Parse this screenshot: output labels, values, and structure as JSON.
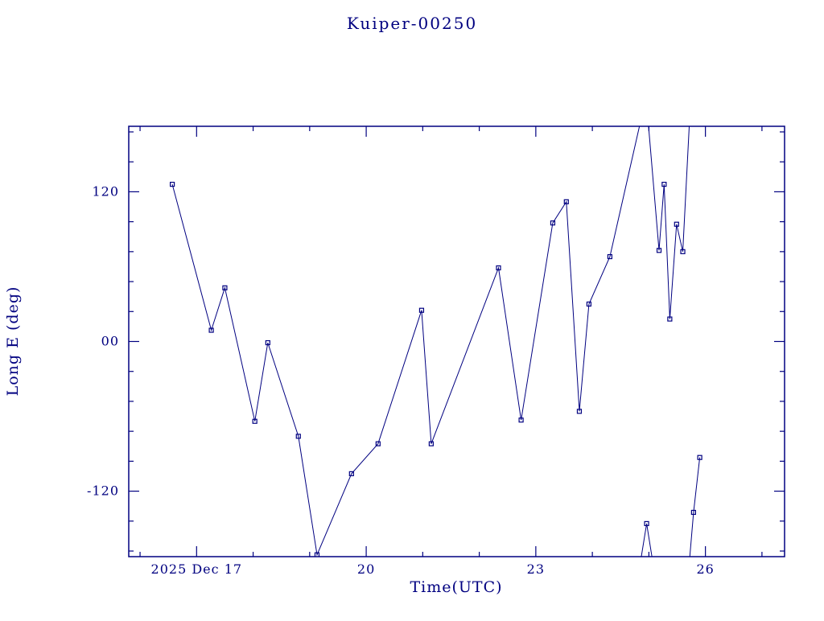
{
  "chart_data": {
    "type": "line",
    "title": "Kuiper-00250",
    "xlabel": "Time(UTC)",
    "ylabel": "Long E (deg)",
    "x_unit": "day of December 2025, UTC",
    "xlim": [
      15.8,
      27.4
    ],
    "ylim": [
      -172.5,
      172.5
    ],
    "x_major_ticks": [
      {
        "value": 17,
        "label": "2025 Dec 17"
      },
      {
        "value": 20,
        "label": "20"
      },
      {
        "value": 23,
        "label": "23"
      },
      {
        "value": 26,
        "label": "26"
      }
    ],
    "x_minor_step": 1,
    "y_major_ticks": [
      {
        "value": -120,
        "label": "-120"
      },
      {
        "value": 0,
        "label": "00"
      },
      {
        "value": 120,
        "label": "120"
      }
    ],
    "y_minor_step": 24,
    "line_color": "#000080",
    "marker": "open-square",
    "background": "#ffffff",
    "grid": false,
    "legend": "none",
    "segments": [
      [
        [
          16.57,
          126
        ],
        [
          17.26,
          9
        ],
        [
          17.5,
          43
        ],
        [
          18.03,
          -64
        ],
        [
          18.26,
          -1
        ],
        [
          18.8,
          -76
        ],
        [
          19.13,
          -171
        ],
        [
          19.74,
          -106
        ],
        [
          20.21,
          -82
        ],
        [
          20.98,
          25
        ],
        [
          21.15,
          -82
        ],
        [
          22.34,
          59
        ],
        [
          22.74,
          -63
        ],
        [
          23.3,
          95
        ],
        [
          23.54,
          112
        ],
        [
          23.77,
          -56
        ],
        [
          23.94,
          30
        ],
        [
          24.31,
          68
        ],
        [
          24.95,
          196
        ],
        [
          25.18,
          73
        ],
        [
          25.27,
          126
        ],
        [
          25.37,
          18
        ],
        [
          25.49,
          94
        ],
        [
          25.6,
          72
        ],
        [
          25.75,
          205
        ]
      ],
      [
        [
          24.84,
          -180
        ],
        [
          24.96,
          -146
        ],
        [
          25.08,
          -180
        ]
      ],
      [
        [
          25.7,
          -185
        ],
        [
          25.79,
          -137
        ],
        [
          25.9,
          -93
        ]
      ]
    ],
    "markers": [
      [
        16.57,
        126
      ],
      [
        17.26,
        9
      ],
      [
        17.5,
        43
      ],
      [
        18.03,
        -64
      ],
      [
        18.26,
        -1
      ],
      [
        18.8,
        -76
      ],
      [
        19.13,
        -171
      ],
      [
        19.74,
        -106
      ],
      [
        20.21,
        -82
      ],
      [
        20.98,
        25
      ],
      [
        21.15,
        -82
      ],
      [
        22.34,
        59
      ],
      [
        22.74,
        -63
      ],
      [
        23.3,
        95
      ],
      [
        23.54,
        112
      ],
      [
        23.77,
        -56
      ],
      [
        23.94,
        30
      ],
      [
        24.31,
        68
      ],
      [
        24.96,
        -146
      ],
      [
        25.18,
        73
      ],
      [
        25.27,
        126
      ],
      [
        25.37,
        18
      ],
      [
        25.49,
        94
      ],
      [
        25.6,
        72
      ],
      [
        25.79,
        -137
      ],
      [
        25.9,
        -93
      ]
    ]
  }
}
